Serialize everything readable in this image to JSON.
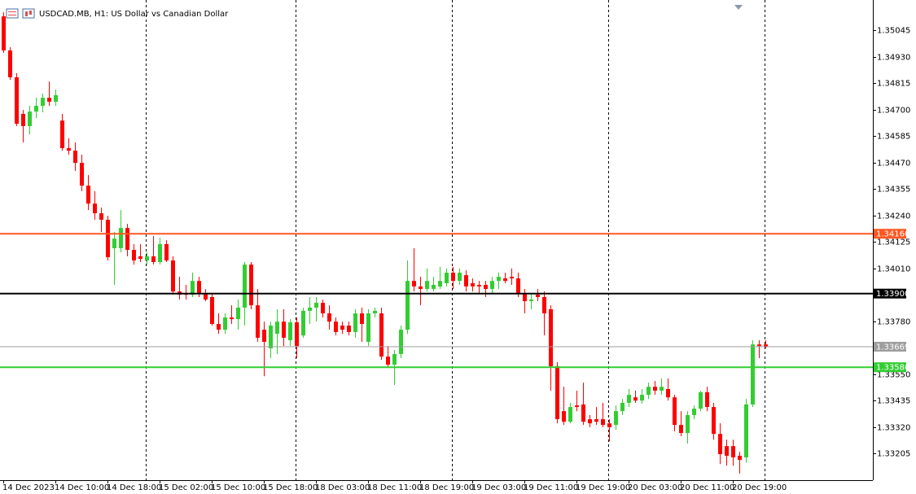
{
  "chart_data": {
    "type": "candlestick",
    "title": "USDCAD.MB, H1:  US Dollar vs Canadian Dollar",
    "up_color": "#32cd32",
    "down_color": "#ff0000",
    "categories": [
      "14 Dec 2023",
      null,
      null,
      null,
      null,
      null,
      null,
      null,
      "14 Dec 10:00",
      null,
      null,
      null,
      null,
      null,
      null,
      null,
      "14 Dec 18:00",
      null,
      null,
      null,
      null,
      null,
      null,
      null,
      "15 Dec 02:00",
      null,
      null,
      null,
      null,
      null,
      null,
      null,
      "15 Dec 10:00",
      null,
      null,
      null,
      null,
      null,
      null,
      null,
      "15 Dec 18:00",
      null,
      null,
      null,
      null,
      null,
      null,
      null,
      "18 Dec 03:00",
      null,
      null,
      null,
      null,
      null,
      null,
      null,
      "18 Dec 11:00",
      null,
      null,
      null,
      null,
      null,
      null,
      null,
      "18 Dec 19:00",
      null,
      null,
      null,
      null,
      null,
      null,
      null,
      "19 Dec 03:00",
      null,
      null,
      null,
      null,
      null,
      null,
      null,
      "19 Dec 11:00",
      null,
      null,
      null,
      null,
      null,
      null,
      null,
      "19 Dec 19:00",
      null,
      null,
      null,
      null,
      null,
      null,
      null,
      "20 Dec 03:00",
      null,
      null,
      null,
      null,
      null,
      null,
      null,
      "20 Dec 11:00",
      null,
      null,
      null,
      null,
      null,
      null,
      null,
      "20 Dec 19:00",
      null,
      null,
      null,
      null,
      null
    ],
    "open": [
      1.35105,
      1.34957,
      1.3484,
      1.34681,
      1.34628,
      1.34691,
      1.34716,
      1.34751,
      1.34734,
      1.34652,
      1.34532,
      1.34521,
      1.34468,
      1.34369,
      1.34291,
      1.34249,
      1.34221,
      1.34097,
      1.34097,
      1.34185,
      1.3409,
      1.34062,
      1.34044,
      1.34062,
      1.34037,
      1.34115,
      1.34044,
      1.33909,
      1.33902,
      1.33895,
      1.33955,
      1.33902,
      1.33885,
      1.33768,
      1.33743,
      1.33796,
      1.33789,
      1.33839,
      1.34026,
      1.33849,
      1.33743,
      1.33662,
      1.33725,
      1.33778,
      1.33697,
      1.33775,
      1.33718,
      1.33825,
      1.33839,
      1.3386,
      1.33814,
      1.33778,
      1.33761,
      1.33761,
      1.33733,
      1.33814,
      1.3369,
      1.33814,
      1.33814,
      1.33626,
      1.33591,
      1.33637,
      1.33743,
      1.33955,
      1.33931,
      1.3392,
      1.3392,
      1.33931,
      1.33945,
      1.33991,
      1.33955,
      1.3398,
      1.33945,
      1.33938,
      1.33938,
      1.3392,
      1.33955,
      1.33966,
      1.33973,
      1.33966,
      1.33902,
      1.33867,
      1.33895,
      1.33885,
      1.33832,
      1.33584,
      1.33389,
      1.33343,
      1.33414,
      1.33418,
      1.33354,
      1.33354,
      1.33354,
      1.33336,
      1.33329,
      1.33389,
      1.33425,
      1.33449,
      1.33435,
      1.3346,
      1.33495,
      1.33478,
      1.33485,
      1.33449,
      1.33329,
      1.33294,
      1.33372,
      1.334,
      1.33471,
      1.33407,
      1.3329,
      1.33237,
      1.33237,
      1.33195,
      1.33188,
      1.33418,
      1.33679,
      1.33679
    ],
    "high": [
      1.35123,
      1.34971,
      1.34858,
      1.34698,
      1.34716,
      1.34751,
      1.34769,
      1.34822,
      1.34787,
      1.34681,
      1.34575,
      1.34557,
      1.34504,
      1.34415,
      1.34345,
      1.34274,
      1.34238,
      1.34168,
      1.34263,
      1.34203,
      1.34115,
      1.34115,
      1.34079,
      1.3415,
      1.34143,
      1.34132,
      1.34062,
      1.33973,
      1.33938,
      1.33991,
      1.33973,
      1.3392,
      1.33902,
      1.33814,
      1.33814,
      1.33849,
      1.33874,
      1.34037,
      1.34037,
      1.3392,
      1.33778,
      1.33778,
      1.33832,
      1.33832,
      1.33789,
      1.33796,
      1.33839,
      1.33885,
      1.33885,
      1.33874,
      1.33849,
      1.33796,
      1.33778,
      1.33778,
      1.33832,
      1.33839,
      1.33832,
      1.33839,
      1.33839,
      1.33672,
      1.33655,
      1.33761,
      1.34044,
      1.34097,
      1.33973,
      1.34009,
      1.33973,
      1.34016,
      1.34009,
      1.34016,
      1.34009,
      1.34001,
      1.33966,
      1.33955,
      1.33955,
      1.33973,
      1.33991,
      1.33991,
      1.34009,
      1.33991,
      1.3392,
      1.33902,
      1.3392,
      1.33909,
      1.33849,
      1.33602,
      1.33495,
      1.33425,
      1.33478,
      1.33513,
      1.33372,
      1.33407,
      1.33425,
      1.33354,
      1.33414,
      1.33442,
      1.33485,
      1.33478,
      1.33485,
      1.33513,
      1.3352,
      1.33531,
      1.33531,
      1.3346,
      1.33389,
      1.33389,
      1.33414,
      1.33478,
      1.33495,
      1.33425,
      1.33336,
      1.33265,
      1.33265,
      1.33212,
      1.33442,
      1.33697,
      1.33697,
      1.33697
    ],
    "low": [
      1.34946,
      1.34829,
      1.34628,
      1.34557,
      1.34592,
      1.34663,
      1.34688,
      1.34716,
      1.34716,
      1.34521,
      1.34504,
      1.34433,
      1.34345,
      1.34263,
      1.34221,
      1.34168,
      1.34044,
      1.33938,
      1.34079,
      1.34062,
      1.34026,
      1.34037,
      1.34026,
      1.34026,
      1.34026,
      1.34037,
      1.33895,
      1.33874,
      1.33874,
      1.33885,
      1.33885,
      1.33867,
      1.33761,
      1.33725,
      1.33725,
      1.33768,
      1.33743,
      1.33761,
      1.33832,
      1.3369,
      1.33541,
      1.33619,
      1.33637,
      1.33672,
      1.33672,
      1.33619,
      1.33708,
      1.33768,
      1.33778,
      1.33796,
      1.33743,
      1.33718,
      1.33725,
      1.33718,
      1.33708,
      1.3369,
      1.33672,
      1.33796,
      1.33612,
      1.33577,
      1.33503,
      1.33619,
      1.33725,
      1.33909,
      1.33849,
      1.33909,
      1.33909,
      1.3392,
      1.33931,
      1.3392,
      1.33938,
      1.33909,
      1.33909,
      1.33902,
      1.33885,
      1.33902,
      1.3392,
      1.33945,
      1.33938,
      1.33885,
      1.33814,
      1.33832,
      1.33867,
      1.33718,
      1.33478,
      1.33336,
      1.33329,
      1.33336,
      1.33389,
      1.33329,
      1.33319,
      1.33329,
      1.33319,
      1.33258,
      1.33308,
      1.33372,
      1.33407,
      1.33425,
      1.33421,
      1.33442,
      1.3346,
      1.3346,
      1.33435,
      1.33301,
      1.3328,
      1.33248,
      1.33354,
      1.33389,
      1.33389,
      1.33265,
      1.33159,
      1.33152,
      1.33152,
      1.33117,
      1.33166,
      1.33407,
      1.33619,
      1.33662
    ],
    "close": [
      1.34957,
      1.3484,
      1.34638,
      1.34628,
      1.34691,
      1.34716,
      1.34751,
      1.34734,
      1.34762,
      1.34532,
      1.34521,
      1.34468,
      1.34369,
      1.34291,
      1.34249,
      1.34221,
      1.34058,
      1.34139,
      1.34185,
      1.3409,
      1.34044,
      1.34051,
      1.34062,
      1.34037,
      1.34115,
      1.34044,
      1.33909,
      1.33895,
      1.33895,
      1.33955,
      1.33902,
      1.33874,
      1.33768,
      1.33743,
      1.33796,
      1.33789,
      1.33839,
      1.34026,
      1.33849,
      1.33708,
      1.3369,
      1.33761,
      1.33778,
      1.33708,
      1.33775,
      1.33672,
      1.33825,
      1.33839,
      1.3386,
      1.33814,
      1.33778,
      1.33733,
      1.33743,
      1.33733,
      1.33814,
      1.33768,
      1.33814,
      1.33825,
      1.33626,
      1.33591,
      1.33637,
      1.33743,
      1.33955,
      1.33931,
      1.3392,
      1.33955,
      1.33938,
      1.33955,
      1.33991,
      1.33955,
      1.33991,
      1.33931,
      1.33931,
      1.33931,
      1.3392,
      1.33955,
      1.33973,
      1.33955,
      1.33966,
      1.33902,
      1.33867,
      1.33874,
      1.33885,
      1.33814,
      1.33584,
      1.33354,
      1.33343,
      1.33407,
      1.33407,
      1.33343,
      1.33336,
      1.33343,
      1.33329,
      1.33319,
      1.33389,
      1.33425,
      1.3346,
      1.33435,
      1.3346,
      1.33495,
      1.33478,
      1.33495,
      1.33449,
      1.33329,
      1.33294,
      1.33372,
      1.334,
      1.33471,
      1.33407,
      1.3329,
      1.33202,
      1.33195,
      1.33188,
      1.33177,
      1.33418,
      1.33679,
      1.33672,
      1.33669
    ],
    "levels": [
      {
        "value": 1.3416,
        "label": "1.34160",
        "color": "#ff5722"
      },
      {
        "value": 1.339,
        "label": "1.33900",
        "color": "#000000"
      },
      {
        "value": 1.33669,
        "label": "1.33669",
        "color": "#9e9e9e"
      },
      {
        "value": 1.3358,
        "label": "1.33580",
        "color": "#32cd32"
      }
    ],
    "ylim": [
      1.33089,
      1.35176
    ],
    "yticks": [
      {
        "value": 1.35045,
        "label": "1.35045"
      },
      {
        "value": 1.3493,
        "label": "1.34930"
      },
      {
        "value": 1.34815,
        "label": "1.34815"
      },
      {
        "value": 1.347,
        "label": "1.34700"
      },
      {
        "value": 1.34585,
        "label": "1.34585"
      },
      {
        "value": 1.3447,
        "label": "1.34470"
      },
      {
        "value": 1.34355,
        "label": "1.34355"
      },
      {
        "value": 1.3424,
        "label": "1.34240"
      },
      {
        "value": 1.34125,
        "label": "1.34125"
      },
      {
        "value": 1.3401,
        "label": "1.34010"
      },
      {
        "value": 1.3378,
        "label": "1.33780"
      },
      {
        "value": 1.3355,
        "label": "1.33550"
      },
      {
        "value": 1.33435,
        "label": "1.33435"
      },
      {
        "value": 1.3332,
        "label": "1.33320"
      },
      {
        "value": 1.33205,
        "label": "1.33205"
      }
    ]
  }
}
